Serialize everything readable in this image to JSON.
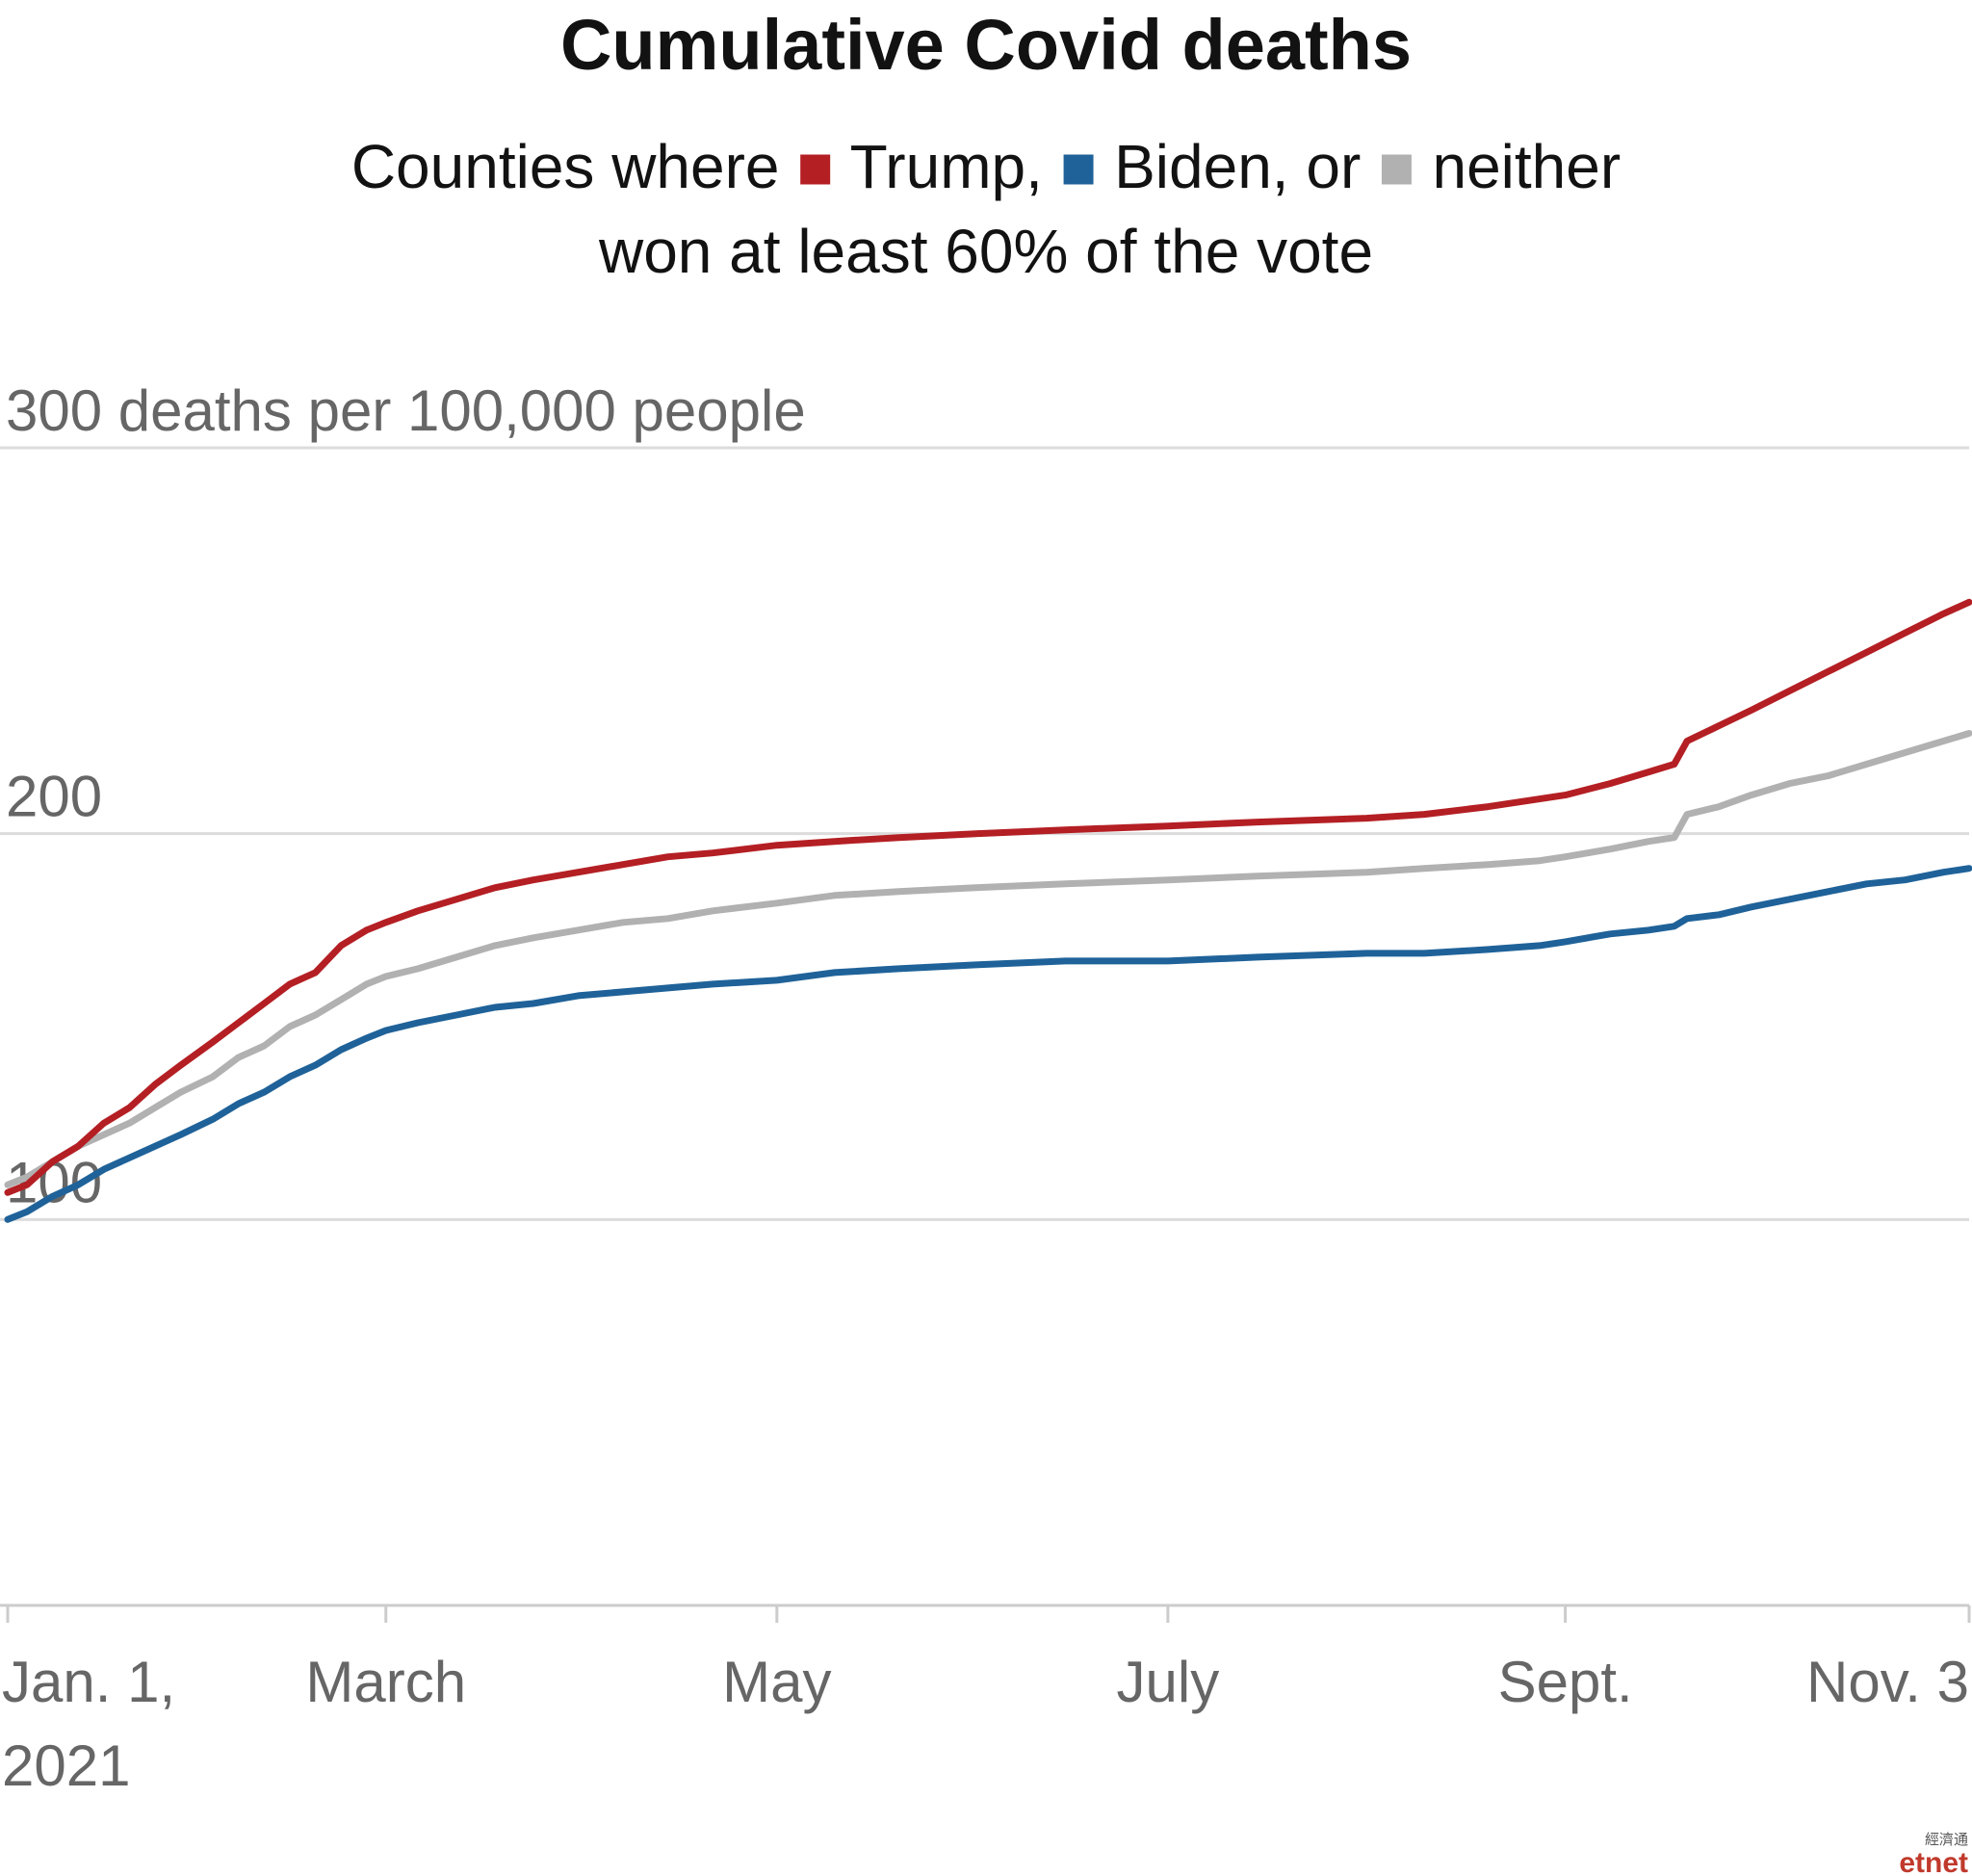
{
  "chart_data": {
    "type": "line",
    "title": "Cumulative Covid deaths",
    "subtitle": {
      "line1_prefix": "Counties where",
      "line1_series": [
        "Trump,",
        "Biden, or",
        "neither"
      ],
      "line2": "won at least 60% of the vote"
    },
    "ylabel": "300 deaths per 100,000 people",
    "ylim": [
      0,
      300
    ],
    "y_ticks": [
      {
        "value": 100,
        "label": "100"
      },
      {
        "value": 200,
        "label": "200"
      },
      {
        "value": 300,
        "label": "300 deaths per 100,000 people"
      }
    ],
    "x_range": [
      "2021-01-01",
      "2021-11-03"
    ],
    "x_ticks": [
      {
        "date": "2021-01-01",
        "label": "Jan. 1,",
        "label2": "2021"
      },
      {
        "date": "2021-03-01",
        "label": "March"
      },
      {
        "date": "2021-05-01",
        "label": "May"
      },
      {
        "date": "2021-07-01",
        "label": "July"
      },
      {
        "date": "2021-09-01",
        "label": "Sept."
      },
      {
        "date": "2021-11-03",
        "label": "Nov. 3"
      }
    ],
    "grid": true,
    "legend": "inline-subtitle",
    "series": [
      {
        "name": "Trump,",
        "color": "#b41f24",
        "points": [
          [
            "2021-01-01",
            107
          ],
          [
            "2021-01-04",
            109
          ],
          [
            "2021-01-08",
            115
          ],
          [
            "2021-01-12",
            119
          ],
          [
            "2021-01-16",
            125
          ],
          [
            "2021-01-20",
            129
          ],
          [
            "2021-01-24",
            135
          ],
          [
            "2021-01-28",
            140
          ],
          [
            "2021-02-02",
            146
          ],
          [
            "2021-02-06",
            151
          ],
          [
            "2021-02-10",
            156
          ],
          [
            "2021-02-14",
            161
          ],
          [
            "2021-02-18",
            164
          ],
          [
            "2021-02-22",
            171
          ],
          [
            "2021-02-26",
            175
          ],
          [
            "2021-03-01",
            177
          ],
          [
            "2021-03-06",
            180
          ],
          [
            "2021-03-12",
            183
          ],
          [
            "2021-03-18",
            186
          ],
          [
            "2021-03-24",
            188
          ],
          [
            "2021-03-31",
            190
          ],
          [
            "2021-04-07",
            192
          ],
          [
            "2021-04-14",
            194
          ],
          [
            "2021-04-21",
            195
          ],
          [
            "2021-05-01",
            197
          ],
          [
            "2021-05-10",
            198
          ],
          [
            "2021-05-20",
            199
          ],
          [
            "2021-06-01",
            200
          ],
          [
            "2021-06-15",
            201
          ],
          [
            "2021-07-01",
            202
          ],
          [
            "2021-07-15",
            203
          ],
          [
            "2021-08-01",
            204
          ],
          [
            "2021-08-10",
            205
          ],
          [
            "2021-08-20",
            207
          ],
          [
            "2021-08-28",
            209
          ],
          [
            "2021-09-01",
            210
          ],
          [
            "2021-09-08",
            213
          ],
          [
            "2021-09-14",
            216
          ],
          [
            "2021-09-18",
            218
          ],
          [
            "2021-09-20",
            224
          ],
          [
            "2021-09-25",
            228
          ],
          [
            "2021-09-30",
            232
          ],
          [
            "2021-10-06",
            237
          ],
          [
            "2021-10-12",
            242
          ],
          [
            "2021-10-18",
            247
          ],
          [
            "2021-10-24",
            252
          ],
          [
            "2021-10-30",
            257
          ],
          [
            "2021-11-03",
            260
          ]
        ]
      },
      {
        "name": "Biden, or",
        "color": "#1f6299",
        "points": [
          [
            "2021-01-01",
            100
          ],
          [
            "2021-01-04",
            102
          ],
          [
            "2021-01-08",
            106
          ],
          [
            "2021-01-12",
            109
          ],
          [
            "2021-01-16",
            113
          ],
          [
            "2021-01-20",
            116
          ],
          [
            "2021-01-24",
            119
          ],
          [
            "2021-01-28",
            122
          ],
          [
            "2021-02-02",
            126
          ],
          [
            "2021-02-06",
            130
          ],
          [
            "2021-02-10",
            133
          ],
          [
            "2021-02-14",
            137
          ],
          [
            "2021-02-18",
            140
          ],
          [
            "2021-02-22",
            144
          ],
          [
            "2021-02-26",
            147
          ],
          [
            "2021-03-01",
            149
          ],
          [
            "2021-03-06",
            151
          ],
          [
            "2021-03-12",
            153
          ],
          [
            "2021-03-18",
            155
          ],
          [
            "2021-03-24",
            156
          ],
          [
            "2021-03-31",
            158
          ],
          [
            "2021-04-07",
            159
          ],
          [
            "2021-04-14",
            160
          ],
          [
            "2021-04-21",
            161
          ],
          [
            "2021-05-01",
            162
          ],
          [
            "2021-05-10",
            164
          ],
          [
            "2021-05-20",
            165
          ],
          [
            "2021-06-01",
            166
          ],
          [
            "2021-06-15",
            167
          ],
          [
            "2021-07-01",
            167
          ],
          [
            "2021-07-15",
            168
          ],
          [
            "2021-08-01",
            169
          ],
          [
            "2021-08-10",
            169
          ],
          [
            "2021-08-20",
            170
          ],
          [
            "2021-08-28",
            171
          ],
          [
            "2021-09-01",
            172
          ],
          [
            "2021-09-08",
            174
          ],
          [
            "2021-09-14",
            175
          ],
          [
            "2021-09-18",
            176
          ],
          [
            "2021-09-20",
            178
          ],
          [
            "2021-09-25",
            179
          ],
          [
            "2021-09-30",
            181
          ],
          [
            "2021-10-06",
            183
          ],
          [
            "2021-10-12",
            185
          ],
          [
            "2021-10-18",
            187
          ],
          [
            "2021-10-24",
            188
          ],
          [
            "2021-10-30",
            190
          ],
          [
            "2021-11-03",
            191
          ]
        ]
      },
      {
        "name": "neither",
        "color": "#b1b1b1",
        "points": [
          [
            "2021-01-01",
            109
          ],
          [
            "2021-01-04",
            111
          ],
          [
            "2021-01-08",
            115
          ],
          [
            "2021-01-12",
            119
          ],
          [
            "2021-01-16",
            122
          ],
          [
            "2021-01-20",
            125
          ],
          [
            "2021-01-24",
            129
          ],
          [
            "2021-01-28",
            133
          ],
          [
            "2021-02-02",
            137
          ],
          [
            "2021-02-06",
            142
          ],
          [
            "2021-02-10",
            145
          ],
          [
            "2021-02-14",
            150
          ],
          [
            "2021-02-18",
            153
          ],
          [
            "2021-02-22",
            157
          ],
          [
            "2021-02-26",
            161
          ],
          [
            "2021-03-01",
            163
          ],
          [
            "2021-03-06",
            165
          ],
          [
            "2021-03-12",
            168
          ],
          [
            "2021-03-18",
            171
          ],
          [
            "2021-03-24",
            173
          ],
          [
            "2021-03-31",
            175
          ],
          [
            "2021-04-07",
            177
          ],
          [
            "2021-04-14",
            178
          ],
          [
            "2021-04-21",
            180
          ],
          [
            "2021-05-01",
            182
          ],
          [
            "2021-05-10",
            184
          ],
          [
            "2021-05-20",
            185
          ],
          [
            "2021-06-01",
            186
          ],
          [
            "2021-06-15",
            187
          ],
          [
            "2021-07-01",
            188
          ],
          [
            "2021-07-15",
            189
          ],
          [
            "2021-08-01",
            190
          ],
          [
            "2021-08-10",
            191
          ],
          [
            "2021-08-20",
            192
          ],
          [
            "2021-08-28",
            193
          ],
          [
            "2021-09-01",
            194
          ],
          [
            "2021-09-08",
            196
          ],
          [
            "2021-09-14",
            198
          ],
          [
            "2021-09-18",
            199
          ],
          [
            "2021-09-20",
            205
          ],
          [
            "2021-09-25",
            207
          ],
          [
            "2021-09-30",
            210
          ],
          [
            "2021-10-06",
            213
          ],
          [
            "2021-10-12",
            215
          ],
          [
            "2021-10-18",
            218
          ],
          [
            "2021-10-24",
            221
          ],
          [
            "2021-10-30",
            224
          ],
          [
            "2021-11-03",
            226
          ]
        ]
      }
    ]
  },
  "watermark": {
    "chinese": "經濟通",
    "latin": "etnet"
  }
}
